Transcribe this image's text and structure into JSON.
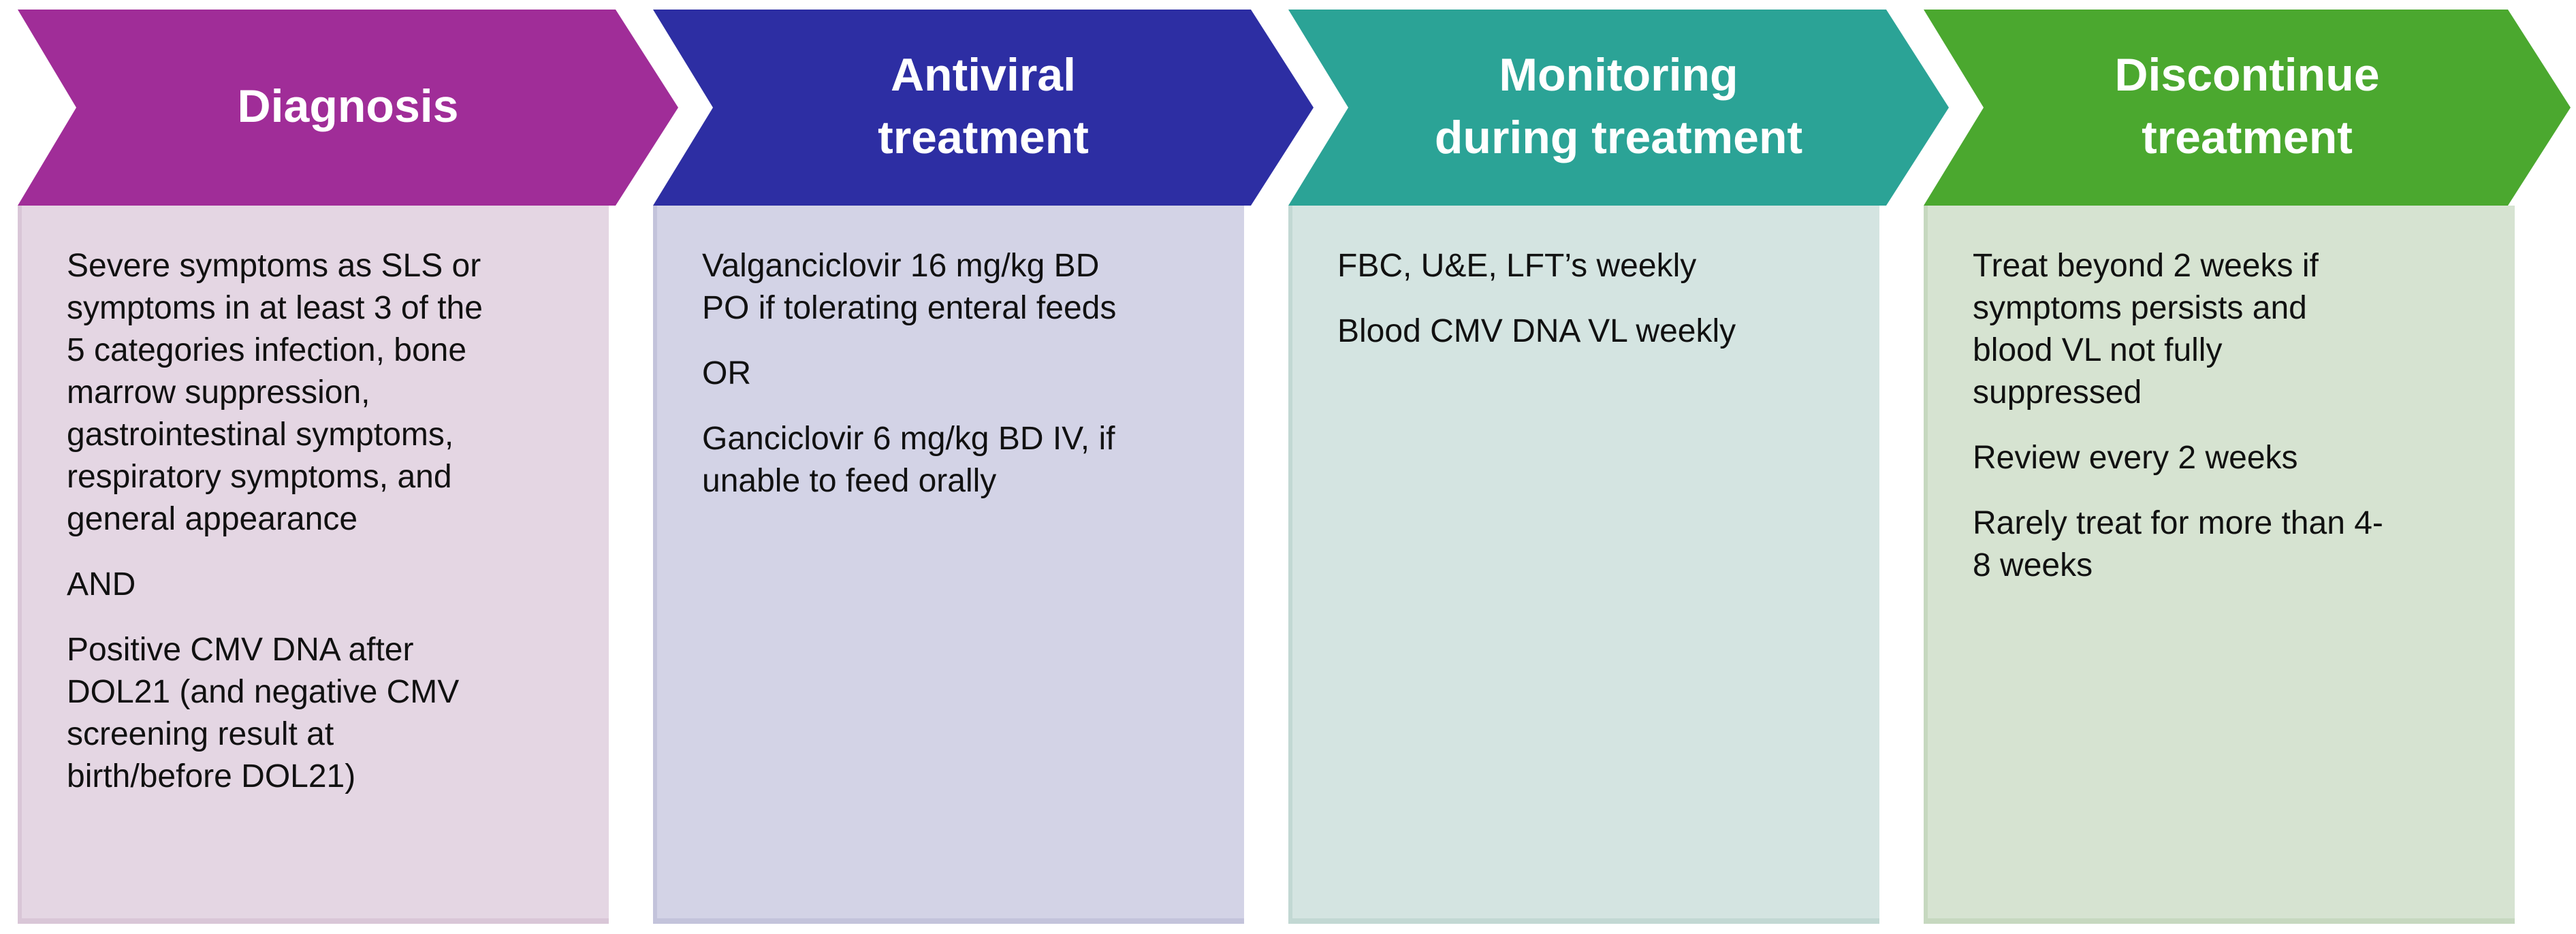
{
  "flowchart": {
    "stages": [
      {
        "id": "diagnosis",
        "title": "Diagnosis",
        "header_color": "#A02D98",
        "body_color": "#E4D6E3",
        "edge_color": "#D9C6D7",
        "paragraphs": [
          "Severe symptoms as SLS or\nsymptoms in at least 3 of the\n5 categories infection, bone\nmarrow suppression,\ngastrointestinal symptoms,\nrespiratory symptoms, and\ngeneral appearance",
          "AND",
          "Positive CMV DNA after\nDOL21 (and negative CMV\nscreening result at\nbirth/before DOL21)"
        ]
      },
      {
        "id": "antiviral-treatment",
        "title": "Antiviral\ntreatment",
        "header_color": "#2D2EA3",
        "body_color": "#D3D3E6",
        "edge_color": "#C3C3DB",
        "paragraphs": [
          "Valganciclovir 16 mg/kg BD\nPO if tolerating enteral feeds",
          "OR",
          "Ganciclovir 6 mg/kg BD IV, if\nunable to feed orally"
        ]
      },
      {
        "id": "monitoring-during-treatment",
        "title": "Monitoring\nduring treatment",
        "header_color": "#2BA396",
        "body_color": "#D4E4E1",
        "edge_color": "#C2D8D3",
        "paragraphs": [
          "FBC, U&E, LFT’s weekly",
          "Blood CMV DNA VL weekly"
        ]
      },
      {
        "id": "discontinue-treatment",
        "title": "Discontinue\ntreatment",
        "header_color": "#4BA82F",
        "body_color": "#D6E3D1",
        "edge_color": "#C6D8BF",
        "paragraphs": [
          "Treat beyond 2 weeks if\nsymptoms persists and\nblood VL not fully\nsuppressed",
          "Review every 2 weeks",
          "Rarely treat for more than 4-\n8 weeks"
        ]
      }
    ]
  }
}
